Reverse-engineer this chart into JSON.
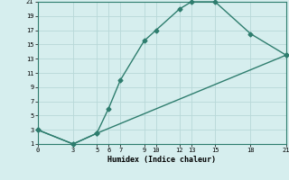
{
  "xlabel": "Humidex (Indice chaleur)",
  "line1_x": [
    0,
    3,
    5,
    6,
    7,
    9,
    10,
    12,
    13,
    15,
    18,
    21
  ],
  "line1_y": [
    3,
    1,
    2.5,
    6,
    10,
    15.5,
    17,
    20,
    21,
    21,
    16.5,
    13.5
  ],
  "line2_x": [
    0,
    3,
    5,
    21
  ],
  "line2_y": [
    3,
    1,
    2.5,
    13.5
  ],
  "color": "#2e7d6e",
  "bg_color": "#d6eeee",
  "grid_color": "#b8d8d8",
  "xlim": [
    0,
    21
  ],
  "ylim": [
    1,
    21
  ],
  "xticks": [
    0,
    3,
    5,
    6,
    7,
    9,
    10,
    12,
    13,
    15,
    18,
    21
  ],
  "yticks": [
    1,
    3,
    5,
    7,
    9,
    11,
    13,
    15,
    17,
    19,
    21
  ],
  "marker": "D",
  "markersize": 2.5,
  "linewidth": 1.0
}
